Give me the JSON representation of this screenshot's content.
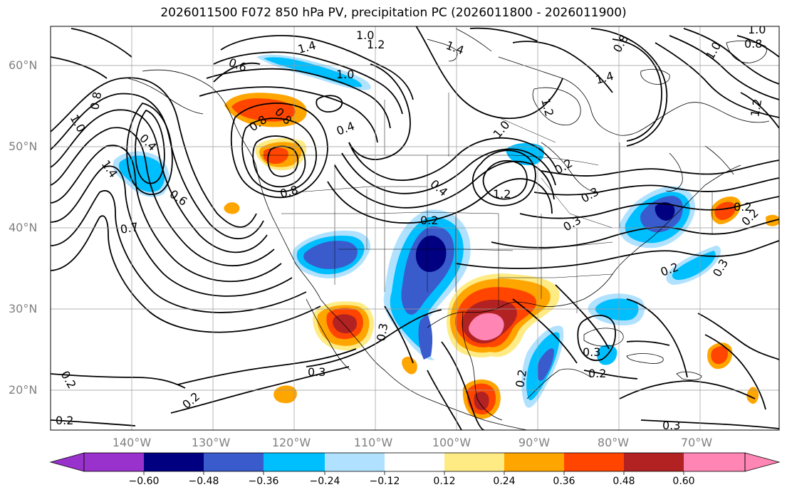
{
  "title": "2026011500 F072 850 hPa PV, precipitation PC (2026011800 - 2026011900)",
  "lat_labels": [
    "60°N",
    "50°N",
    "40°N",
    "30°N",
    "20°N"
  ],
  "lon_labels": [
    "140°W",
    "130°W",
    "120°W",
    "110°W",
    "100°W",
    "90°W",
    "80°W",
    "70°W"
  ],
  "colorbar": {
    "ticks": [
      "−0.60",
      "−0.48",
      "−0.36",
      "−0.24",
      "−0.12",
      "0.12",
      "0.24",
      "0.36",
      "0.48",
      "0.60"
    ],
    "colors": [
      "#9932cc",
      "#000080",
      "#3a5bcc",
      "#00bfff",
      "#b0e2ff",
      "#ffffff",
      "#ffeb84",
      "#ffa500",
      "#ff4500",
      "#b22222",
      "#ff85b4"
    ]
  },
  "contour_labels": [
    "1.0",
    "1.2",
    "1.4",
    "1.0",
    "0.8",
    "0.6",
    "1.4",
    "1.0",
    "0.8",
    "1.0",
    "0.8",
    "1.2",
    "1.4",
    "0.8",
    "0.4",
    "1.2",
    "1.0",
    "1.4",
    "0.4",
    "0.6",
    "0.8",
    "0.7",
    "0.4",
    "0.2",
    "1.2",
    "0.8",
    "1.0",
    "0.2",
    "0.3",
    "0.2",
    "0.3",
    "0.3",
    "0.2",
    "0.3",
    "0.2",
    "0.2",
    "0.3",
    "0.2",
    "0.2",
    "0.2",
    "0.3",
    "0.3",
    "0.2"
  ]
}
